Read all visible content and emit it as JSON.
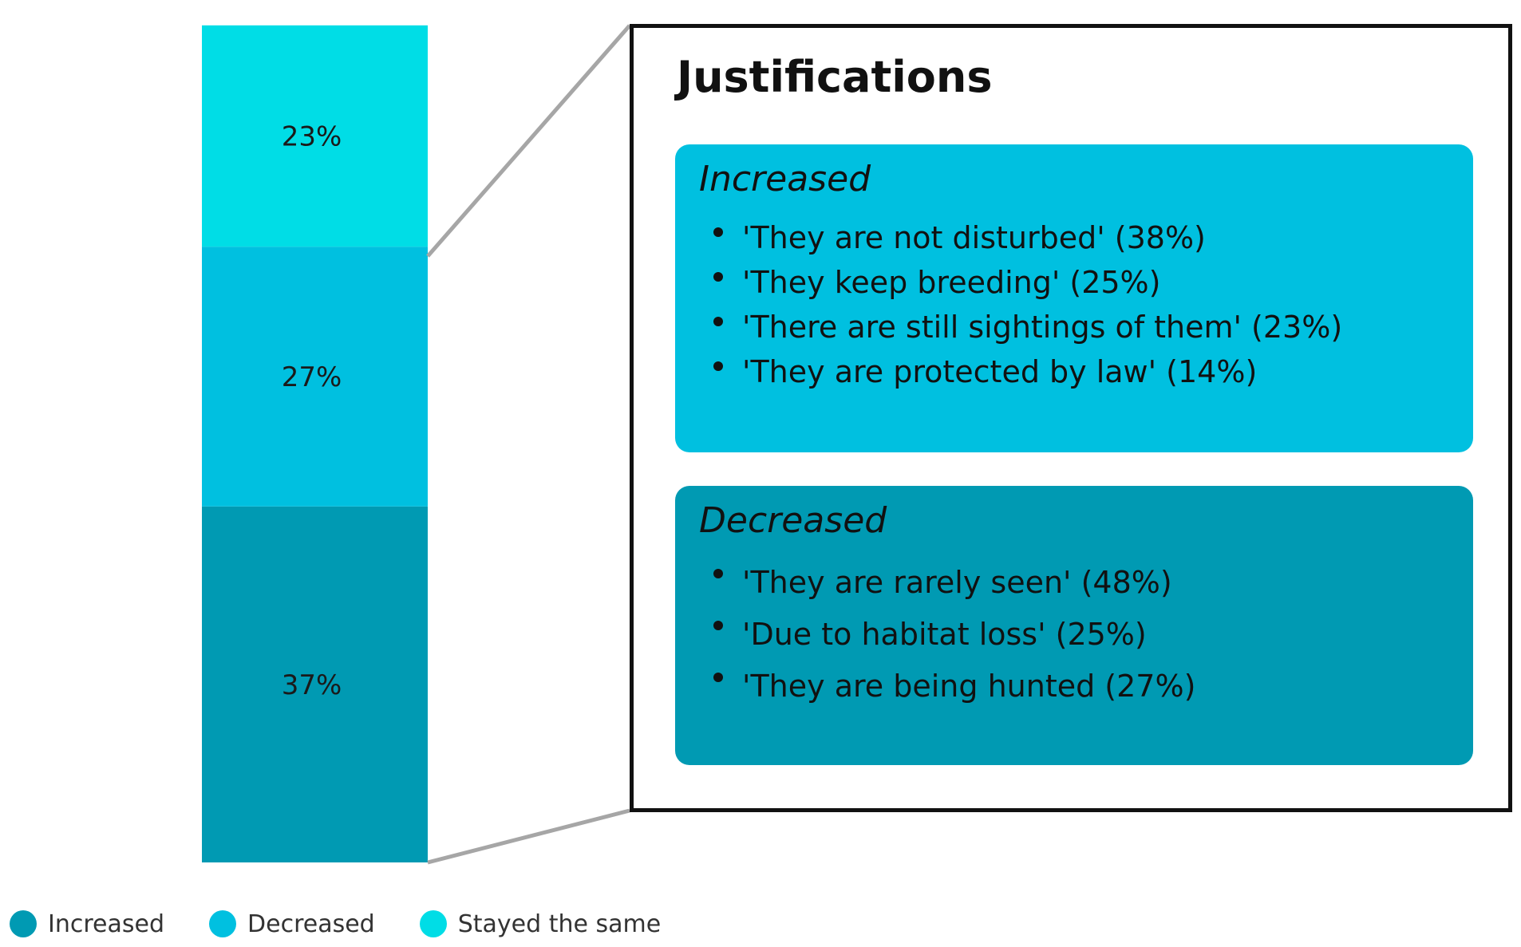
{
  "chart_data": {
    "type": "bar",
    "stacked": true,
    "categories": [
      ""
    ],
    "series": [
      {
        "name": "Increased",
        "values": [
          37
        ],
        "label": "37%",
        "color": "#009ab3"
      },
      {
        "name": "Decreased",
        "values": [
          27
        ],
        "label": "27%",
        "color": "#00c0e0"
      },
      {
        "name": "Stayed the same",
        "values": [
          23
        ],
        "label": "23%",
        "color": "#00dde6"
      }
    ],
    "title": "",
    "xlabel": "",
    "ylabel": "",
    "legend": "bottom-left",
    "grid": false
  },
  "justifications": {
    "title": "Justifications",
    "increased": {
      "heading": "Increased",
      "color": "#00c0e0",
      "items": [
        "'They are not disturbed' (38%)",
        "'They keep breeding' (25%)",
        "'There are still sightings of them' (23%)",
        "'They are protected by law' (14%)"
      ]
    },
    "decreased": {
      "heading": "Decreased",
      "color": "#009ab3",
      "items": [
        "'They are rarely seen' (48%)",
        "'Due to habitat loss' (25%)",
        "'They are being hunted (27%)"
      ]
    }
  },
  "colors": {
    "connector": "#a6a6a6",
    "frame": "#111111"
  }
}
